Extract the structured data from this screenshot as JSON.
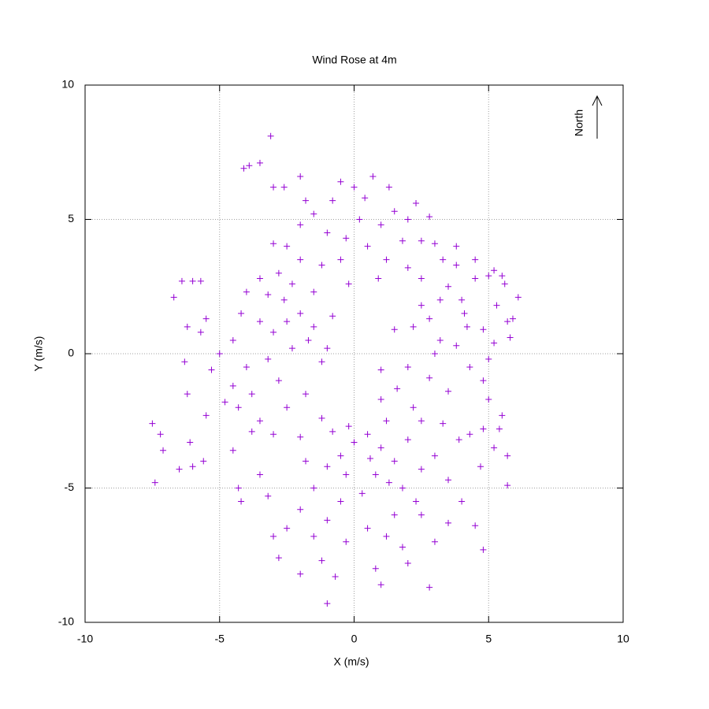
{
  "chart_data": {
    "type": "scatter",
    "title": "Wind Rose at 4m",
    "x_label": "X (m/s)",
    "y_label": "Y (m/s)",
    "annotation": "North",
    "color": "#9400d3",
    "grid": true,
    "xlim": [
      -10,
      10
    ],
    "ylim": [
      -10,
      10
    ],
    "xticks": [
      -10,
      -5,
      0,
      5,
      10
    ],
    "yticks": [
      -10,
      -5,
      0,
      5,
      10
    ],
    "x": [
      -3.1,
      -4.1,
      -3.9,
      -3.5,
      -7.5,
      -7.4,
      -7.2,
      -7.1,
      -1.0,
      1.0,
      2.8,
      6.1,
      -6.4,
      -6.7,
      5.7,
      5.7,
      -0.5,
      0.7,
      -0.3,
      0.2,
      -0.5,
      0.5,
      1.0,
      1.5,
      -1.0,
      -1.5,
      -2.0,
      -2.5,
      -3.0,
      2.0,
      2.5,
      3.0,
      1.2,
      2.0,
      2.5,
      -1.2,
      -2.0,
      -2.8,
      -3.5,
      -4.0,
      -0.8,
      0.4,
      -1.8,
      -2.6,
      1.3,
      -3.0,
      -2.0,
      0.0,
      3.3,
      3.8,
      1.8,
      0.9,
      -0.2,
      -1.5,
      -2.3,
      -3.2,
      2.3,
      2.8,
      -2.0,
      -2.5,
      -1.5,
      -3.0,
      -3.5,
      -4.2,
      -4.5,
      -5.0,
      -4.0,
      -3.2,
      -2.3,
      -1.7,
      -1.2,
      -2.8,
      -3.8,
      -4.5,
      -5.3,
      -5.7,
      -6.2,
      -5.5,
      -6.0,
      -5.7,
      -4.3,
      -3.5,
      -2.5,
      -1.8,
      -1.2,
      -3.0,
      -2.0,
      -4.8,
      -5.5,
      -6.3,
      -6.2,
      -6.5,
      -6.0,
      -6.1,
      -5.6,
      -4.5,
      -4.3,
      -3.5,
      -3.2,
      -4.2,
      -3.8,
      -0.8,
      -1.0,
      -2.6,
      0.5,
      1.0,
      1.5,
      2.0,
      2.5,
      0.0,
      -0.5,
      -1.0,
      0.8,
      1.8,
      2.5,
      3.0,
      0.3,
      -0.5,
      -1.5,
      -2.0,
      -2.5,
      -3.0,
      -2.8,
      -2.0,
      -1.2,
      -0.7,
      -1.5,
      0.5,
      1.2,
      1.8,
      1.5,
      2.5,
      3.0,
      3.5,
      4.0,
      4.5,
      4.8,
      0.8,
      2.0,
      -0.3,
      -1.0,
      1.2,
      2.2,
      1.6,
      1.0,
      -0.2,
      -0.8,
      3.3,
      0.6,
      1.3,
      2.3,
      3.5,
      -1.8,
      -0.3,
      3.5,
      4.0,
      4.5,
      5.0,
      5.2,
      5.5,
      5.6,
      5.3,
      5.7,
      5.9,
      5.8,
      5.2,
      4.8,
      4.2,
      3.8,
      3.2,
      2.8,
      2.2,
      4.3,
      4.8,
      5.0,
      5.5,
      4.8,
      5.2,
      3.9,
      3.5,
      2.8,
      2.0,
      3.0,
      5.0,
      4.5,
      3.8,
      4.7,
      4.3,
      2.5,
      1.5,
      1.0,
      3.2,
      4.1,
      5.4
    ],
    "values": [
      8.1,
      6.9,
      7.0,
      7.1,
      -2.6,
      -4.8,
      -3.0,
      -3.6,
      -9.3,
      -8.6,
      -8.7,
      2.1,
      2.7,
      2.1,
      -4.9,
      -3.8,
      6.4,
      6.6,
      4.3,
      5.0,
      3.5,
      4.0,
      4.8,
      5.3,
      4.5,
      5.2,
      4.8,
      4.0,
      4.1,
      5.0,
      4.2,
      4.1,
      3.5,
      3.2,
      2.8,
      3.3,
      3.5,
      3.0,
      2.8,
      2.3,
      5.7,
      5.8,
      5.7,
      6.2,
      6.2,
      6.2,
      6.6,
      6.2,
      3.5,
      3.3,
      4.2,
      2.8,
      2.6,
      2.3,
      2.6,
      2.2,
      5.6,
      5.1,
      1.5,
      1.2,
      1.0,
      0.8,
      1.2,
      1.5,
      0.5,
      0.0,
      -0.5,
      -0.2,
      0.2,
      0.5,
      -0.3,
      -1.0,
      -1.5,
      -1.2,
      -0.6,
      0.8,
      1.0,
      1.3,
      2.7,
      2.7,
      -2.0,
      -2.5,
      -2.0,
      -1.5,
      -2.4,
      -3.0,
      -3.1,
      -1.8,
      -2.3,
      -0.3,
      -1.5,
      -4.3,
      -4.2,
      -3.3,
      -4.0,
      -3.6,
      -5.0,
      -4.5,
      -5.3,
      -5.5,
      -2.9,
      1.4,
      0.2,
      2.0,
      -3.0,
      -3.5,
      -4.0,
      -3.2,
      -2.5,
      -3.3,
      -3.8,
      -4.2,
      -4.5,
      -5.0,
      -4.3,
      -3.8,
      -5.2,
      -5.5,
      -5.0,
      -5.8,
      -6.5,
      -6.8,
      -7.6,
      -8.2,
      -7.7,
      -8.3,
      -6.8,
      -6.5,
      -6.8,
      -7.2,
      -6.0,
      -6.0,
      -7.0,
      -6.3,
      -5.5,
      -6.4,
      -7.3,
      -8.0,
      -7.8,
      -7.0,
      -6.2,
      -2.5,
      -2.0,
      -1.3,
      -1.7,
      -2.7,
      -2.9,
      -2.6,
      -3.9,
      -4.8,
      -5.5,
      -4.7,
      -4.0,
      -4.5,
      2.5,
      2.0,
      2.8,
      2.9,
      3.1,
      2.9,
      2.6,
      1.8,
      1.2,
      1.3,
      0.6,
      0.4,
      0.9,
      1.0,
      0.3,
      0.5,
      1.3,
      1.0,
      -0.5,
      -1.0,
      -1.7,
      -2.3,
      -2.8,
      -3.5,
      -3.2,
      -1.4,
      -0.9,
      -0.5,
      0.0,
      -0.2,
      3.5,
      4.0,
      -4.2,
      -3.0,
      1.8,
      0.9,
      -0.6,
      2.0,
      1.5,
      -2.8
    ]
  }
}
